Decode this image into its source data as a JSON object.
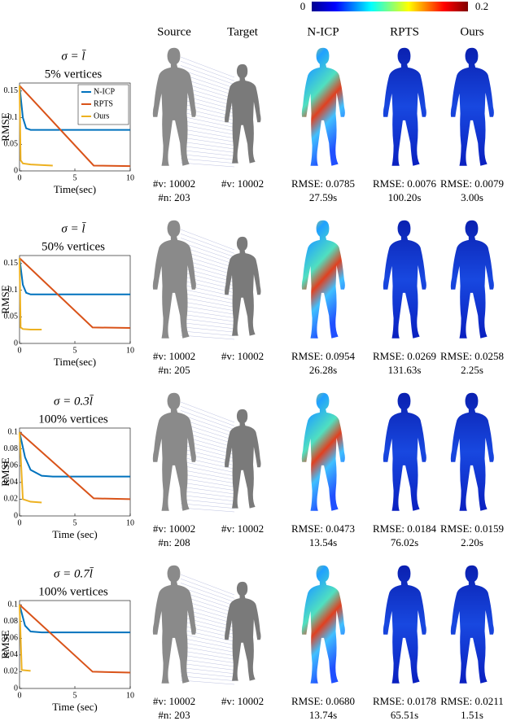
{
  "colorbar": {
    "min_label": "0",
    "max_label": "0.2"
  },
  "columns": [
    "Source",
    "Target",
    "N-ICP",
    "RPTS",
    "Ours"
  ],
  "rows": [
    {
      "sigma": "σ = l̄",
      "subset": "5% vertices",
      "captions": {
        "source": [
          "#v: 10002",
          "#n: 203"
        ],
        "target": [
          "#v: 10002"
        ],
        "nicp": [
          "RMSE: 0.0785",
          "27.59s"
        ],
        "rpts": [
          "RMSE: 0.0076",
          "100.20s"
        ],
        "ours": [
          "RMSE: 0.0079",
          "3.00s"
        ]
      }
    },
    {
      "sigma": "σ = l̄",
      "subset": "50% vertices",
      "captions": {
        "source": [
          "#v: 10002",
          "#n: 205"
        ],
        "target": [
          "#v: 10002"
        ],
        "nicp": [
          "RMSE: 0.0954",
          "26.28s"
        ],
        "rpts": [
          "RMSE: 0.0269",
          "131.63s"
        ],
        "ours": [
          "RMSE: 0.0258",
          "2.25s"
        ]
      }
    },
    {
      "sigma": "σ = 0.3l̄",
      "subset": "100% vertices",
      "captions": {
        "source": [
          "#v: 10002",
          "#n: 208"
        ],
        "target": [
          "#v: 10002"
        ],
        "nicp": [
          "RMSE: 0.0473",
          "13.54s"
        ],
        "rpts": [
          "RMSE: 0.0184",
          "76.02s"
        ],
        "ours": [
          "RMSE: 0.0159",
          "2.20s"
        ]
      }
    },
    {
      "sigma": "σ = 0.7l̄",
      "subset": "100% vertices",
      "captions": {
        "source": [
          "#v: 10002",
          "#n: 203"
        ],
        "target": [
          "#v: 10002"
        ],
        "nicp": [
          "RMSE: 0.0680",
          "13.74s"
        ],
        "rpts": [
          "RMSE: 0.0178",
          "65.51s"
        ],
        "ours": [
          "RMSE: 0.0211",
          "1.51s"
        ]
      }
    }
  ],
  "chart_data": [
    {
      "type": "line",
      "xlabel": "Time(sec)",
      "ylabel": "RMSE",
      "xlim": [
        0,
        10
      ],
      "ylim": [
        0,
        0.165
      ],
      "xticks": [
        0,
        5,
        10
      ],
      "yticks": [
        0,
        0.05,
        0.1,
        0.15
      ],
      "legend": "upper right",
      "series": [
        {
          "name": "N-ICP",
          "color": "#0072bd",
          "x": [
            0,
            0.3,
            0.6,
            1,
            2,
            10
          ],
          "values": [
            0.16,
            0.1,
            0.08,
            0.077,
            0.077,
            0.077
          ]
        },
        {
          "name": "RPTS",
          "color": "#d95319",
          "x": [
            0,
            6.7,
            10
          ],
          "values": [
            0.16,
            0.01,
            0.009
          ]
        },
        {
          "name": "Ours",
          "color": "#edb120",
          "x": [
            0,
            0.1,
            0.3,
            1,
            3
          ],
          "values": [
            0.16,
            0.02,
            0.014,
            0.012,
            0.01
          ]
        }
      ]
    },
    {
      "type": "line",
      "xlabel": "Time(sec)",
      "ylabel": "RMSE",
      "xlim": [
        0,
        10
      ],
      "ylim": [
        0,
        0.165
      ],
      "xticks": [
        0,
        5,
        10
      ],
      "yticks": [
        0,
        0.05,
        0.1,
        0.15
      ],
      "series": [
        {
          "color": "#0072bd",
          "x": [
            0,
            0.3,
            0.6,
            1,
            2,
            10
          ],
          "values": [
            0.16,
            0.11,
            0.095,
            0.092,
            0.092,
            0.092
          ]
        },
        {
          "color": "#d95319",
          "x": [
            0,
            6.6,
            10
          ],
          "values": [
            0.16,
            0.03,
            0.029
          ]
        },
        {
          "color": "#edb120",
          "x": [
            0,
            0.1,
            0.3,
            1,
            2
          ],
          "values": [
            0.16,
            0.03,
            0.027,
            0.026,
            0.026
          ]
        }
      ]
    },
    {
      "type": "line",
      "xlabel": "Time (sec)",
      "ylabel": "RMSE",
      "xlim": [
        0,
        10
      ],
      "ylim": [
        0,
        0.105
      ],
      "xticks": [
        0,
        5,
        10
      ],
      "yticks": [
        0,
        0.02,
        0.04,
        0.06,
        0.08,
        0.1
      ],
      "series": [
        {
          "color": "#0072bd",
          "x": [
            0,
            0.5,
            1,
            2,
            3,
            10
          ],
          "values": [
            0.1,
            0.07,
            0.055,
            0.048,
            0.047,
            0.047
          ]
        },
        {
          "color": "#d95319",
          "x": [
            0,
            6.7,
            10
          ],
          "values": [
            0.1,
            0.021,
            0.02
          ]
        },
        {
          "color": "#edb120",
          "x": [
            0,
            0.3,
            1,
            2
          ],
          "values": [
            0.1,
            0.02,
            0.017,
            0.016
          ]
        }
      ]
    },
    {
      "type": "line",
      "xlabel": "Time (sec)",
      "ylabel": "RMSE",
      "xlim": [
        0,
        10
      ],
      "ylim": [
        0,
        0.105
      ],
      "xticks": [
        0,
        5,
        10
      ],
      "yticks": [
        0,
        0.02,
        0.04,
        0.06,
        0.08,
        0.1
      ],
      "series": [
        {
          "color": "#0072bd",
          "x": [
            0,
            0.5,
            1,
            2,
            10
          ],
          "values": [
            0.1,
            0.075,
            0.068,
            0.067,
            0.067
          ]
        },
        {
          "color": "#d95319",
          "x": [
            0,
            6.6,
            10
          ],
          "values": [
            0.1,
            0.02,
            0.019
          ]
        },
        {
          "color": "#edb120",
          "x": [
            0,
            0.2,
            1
          ],
          "values": [
            0.1,
            0.022,
            0.021
          ]
        }
      ]
    }
  ]
}
